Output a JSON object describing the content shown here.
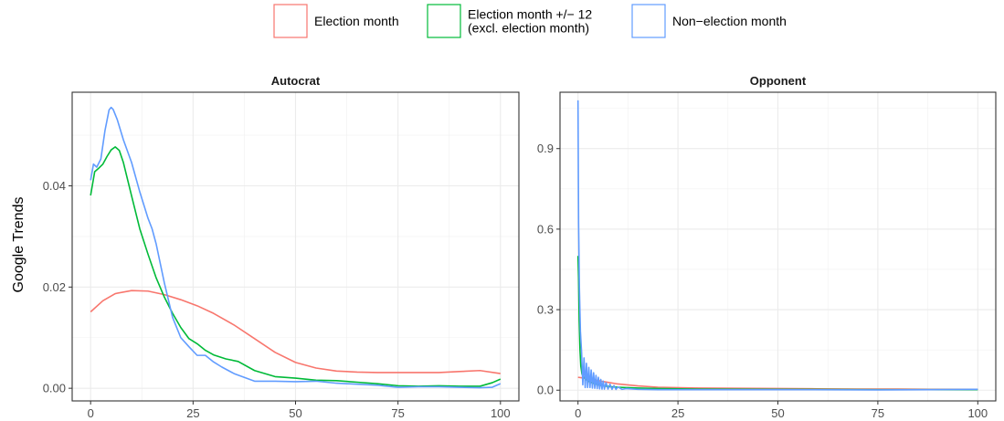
{
  "chart_data": {
    "type": "line",
    "legend": {
      "position": "top",
      "entries": [
        {
          "label_lines": [
            "Election month"
          ],
          "color": "#F8766D"
        },
        {
          "label_lines": [
            "Election month +/− 12",
            "(excl. election month)"
          ],
          "color": "#00BA38"
        },
        {
          "label_lines": [
            "Non−election month"
          ],
          "color": "#619CFF"
        }
      ]
    },
    "ylabel": "Google Trends",
    "grid": true,
    "panels": [
      {
        "title": "Autocrat",
        "xlim": [
          -4.5,
          104.5
        ],
        "ylim": [
          -0.0025,
          0.0585
        ],
        "xticks": [
          0,
          25,
          50,
          75,
          100
        ],
        "xtick_labels": [
          "0",
          "25",
          "50",
          "75",
          "100"
        ],
        "yticks": [
          0,
          0.02,
          0.04
        ],
        "ytick_labels": [
          "0.00",
          "0.02",
          "0.04"
        ],
        "series": [
          {
            "color": "#F8766D",
            "x": [
              0,
              3,
              6,
              10,
              14,
              18,
              22,
              26,
              30,
              35,
              40,
              45,
              50,
              55,
              60,
              65,
              70,
              75,
              80,
              85,
              90,
              95,
              100
            ],
            "y": [
              0.0151,
              0.0173,
              0.0187,
              0.0193,
              0.0192,
              0.0185,
              0.0175,
              0.0163,
              0.0148,
              0.0125,
              0.0098,
              0.0071,
              0.0051,
              0.004,
              0.0034,
              0.0032,
              0.0031,
              0.0031,
              0.0031,
              0.0031,
              0.0033,
              0.0035,
              0.0029
            ]
          },
          {
            "color": "#00BA38",
            "x": [
              0,
              1,
              2,
              3,
              4,
              5,
              6,
              7,
              8,
              10,
              12,
              14,
              16,
              18,
              20,
              22,
              24,
              26,
              28,
              30,
              33,
              36,
              40,
              45,
              50,
              55,
              60,
              65,
              70,
              75,
              80,
              85,
              90,
              95,
              98,
              100
            ],
            "y": [
              0.0381,
              0.0428,
              0.0435,
              0.0443,
              0.0458,
              0.0471,
              0.0477,
              0.047,
              0.0446,
              0.038,
              0.0315,
              0.0265,
              0.0218,
              0.018,
              0.0148,
              0.012,
              0.0098,
              0.0088,
              0.0075,
              0.0066,
              0.0058,
              0.0053,
              0.0035,
              0.0023,
              0.002,
              0.0016,
              0.0015,
              0.0012,
              0.0009,
              0.0005,
              0.0004,
              0.0005,
              0.0004,
              0.0004,
              0.0011,
              0.0018
            ]
          },
          {
            "color": "#619CFF",
            "x": [
              0,
              0.7,
              1.5,
              2.5,
              3.5,
              4.5,
              5,
              5.5,
              6.5,
              8,
              10,
              12,
              14,
              15,
              16,
              18,
              20,
              22,
              24,
              26,
              28,
              30,
              32,
              35,
              40,
              45,
              50,
              55,
              60,
              65,
              70,
              75,
              80,
              85,
              90,
              95,
              98,
              100
            ],
            "y": [
              0.0411,
              0.0443,
              0.0437,
              0.0453,
              0.0509,
              0.055,
              0.0555,
              0.0551,
              0.0531,
              0.0491,
              0.0446,
              0.0388,
              0.0336,
              0.0315,
              0.0285,
              0.0208,
              0.014,
              0.01,
              0.0082,
              0.0065,
              0.0065,
              0.0052,
              0.0042,
              0.0029,
              0.0014,
              0.0014,
              0.0013,
              0.0014,
              0.001,
              0.0008,
              0.0006,
              0.0002,
              0.0003,
              0.0003,
              0.0002,
              0.0001,
              0.0002,
              0.0009
            ]
          }
        ]
      },
      {
        "title": "Opponent",
        "xlim": [
          -4.5,
          104.5
        ],
        "ylim": [
          -0.04,
          1.11
        ],
        "xticks": [
          0,
          25,
          50,
          75,
          100
        ],
        "xtick_labels": [
          "0",
          "25",
          "50",
          "75",
          "100"
        ],
        "yticks": [
          0,
          0.3,
          0.6,
          0.9
        ],
        "ytick_labels": [
          "0.0",
          "0.3",
          "0.6",
          "0.9"
        ],
        "series": [
          {
            "color": "#F8766D",
            "x": [
              0,
              3,
              6,
              10,
              15,
              20,
              30,
              40,
              50,
              60,
              70,
              80,
              90,
              100
            ],
            "y": [
              0.048,
              0.042,
              0.033,
              0.023,
              0.016,
              0.011,
              0.008,
              0.007,
              0.006,
              0.005,
              0.004,
              0.004,
              0.003,
              0.003
            ]
          },
          {
            "color": "#00BA38",
            "x": [
              0,
              0.15,
              0.3,
              0.5,
              0.7,
              1,
              1.3,
              1.6,
              2,
              2.5,
              3,
              3.5,
              4,
              5,
              6,
              7,
              8,
              10,
              15,
              20,
              30,
              50,
              75,
              100
            ],
            "y": [
              0.5,
              0.42,
              0.26,
              0.15,
              0.09,
              0.06,
              0.05,
              0.045,
              0.04,
              0.035,
              0.03,
              0.028,
              0.025,
              0.02,
              0.017,
              0.015,
              0.013,
              0.011,
              0.008,
              0.006,
              0.004,
              0.003,
              0.002,
              0.002
            ]
          },
          {
            "color": "#619CFF",
            "x": [
              0,
              0.15,
              0.35,
              0.6,
              0.9,
              1.2,
              1.5,
              1.8,
              2.1,
              2.4,
              2.7,
              3.0,
              3.3,
              3.6,
              3.9,
              4.2,
              4.5,
              4.8,
              5.1,
              5.4,
              5.7,
              6.0,
              6.3,
              6.6,
              7.0,
              7.5,
              8,
              8.5,
              9,
              9.5,
              10,
              11,
              12,
              15,
              20,
              30,
              50,
              75,
              100
            ],
            "y": [
              1.08,
              0.62,
              0.38,
              0.22,
              0.14,
              0.02,
              0.12,
              0.01,
              0.1,
              0.01,
              0.085,
              0.01,
              0.075,
              0.008,
              0.065,
              0.007,
              0.055,
              0.006,
              0.048,
              0.005,
              0.04,
              0.004,
              0.034,
              0.004,
              0.028,
              0.004,
              0.022,
              0.003,
              0.017,
              0.003,
              0.012,
              0.003,
              0.006,
              0.003,
              0.002,
              0.002,
              0.002,
              0.001,
              0.003
            ]
          }
        ]
      }
    ]
  }
}
